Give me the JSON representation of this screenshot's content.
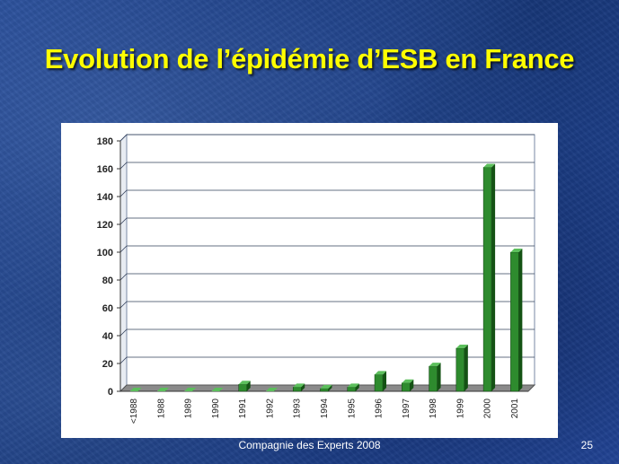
{
  "slide": {
    "title": "Evolution de l’épidémie d’ESB en France",
    "footer": "Compagnie des Experts 2008",
    "page_number": "25"
  },
  "colors": {
    "bar_front": "#2e8b2e",
    "bar_side": "#145214",
    "bar_top": "#5cbf5c",
    "title": "#ffff00"
  },
  "chart_data": {
    "type": "bar",
    "categories": [
      "<1988",
      "1988",
      "1989",
      "1990",
      "1991",
      "1992",
      "1993",
      "1994",
      "1995",
      "1996",
      "1997",
      "1998",
      "1999",
      "2000",
      "2001"
    ],
    "series": [
      {
        "values": [
          0,
          0,
          0,
          0,
          5,
          0,
          3,
          2,
          3,
          12,
          6,
          18,
          31,
          161,
          100
        ]
      }
    ],
    "title": "",
    "xlabel": "",
    "ylabel": "",
    "ylim": [
      0,
      180
    ],
    "yticks": [
      0,
      20,
      40,
      60,
      80,
      100,
      120,
      140,
      160,
      180
    ],
    "grid": true,
    "three_d": true
  }
}
